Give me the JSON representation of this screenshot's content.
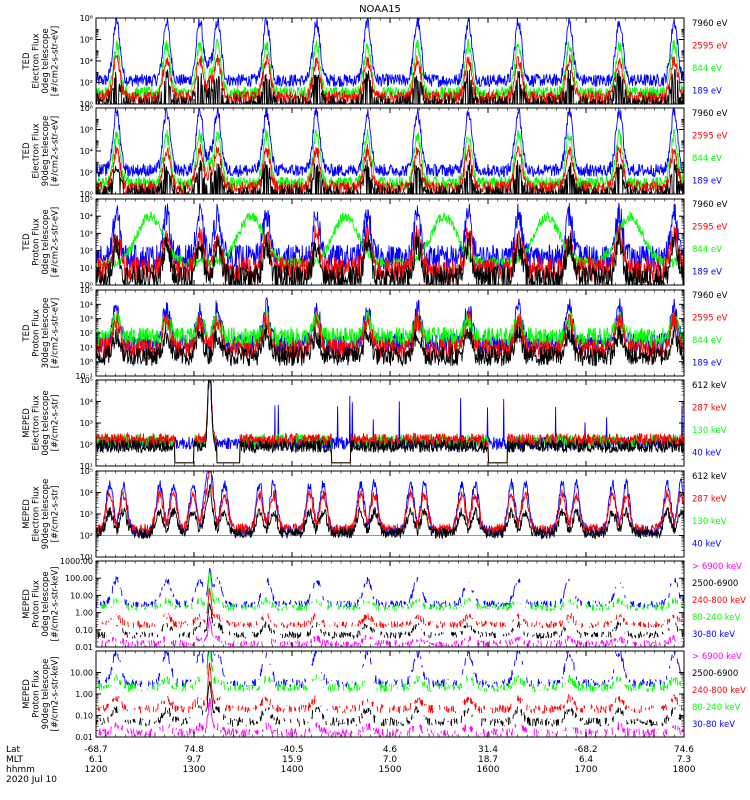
{
  "title": "NOAA15",
  "date_label": "2020 Jul 10",
  "orbit_axis": {
    "row_labels": [
      "Lat",
      "MLT",
      "hhmm"
    ],
    "columns": [
      {
        "lat": "-68.7",
        "mlt": "6.1",
        "hhmm": "1200"
      },
      {
        "lat": "74.8",
        "mlt": "9.7",
        "hhmm": "1300"
      },
      {
        "lat": "-40.5",
        "mlt": "15.9",
        "hhmm": "1400"
      },
      {
        "lat": "4.6",
        "mlt": "7.0",
        "hhmm": "1500"
      },
      {
        "lat": "31.4",
        "mlt": "18.7",
        "hhmm": "1600"
      },
      {
        "lat": "-68.2",
        "mlt": "6.4",
        "hhmm": "1700"
      },
      {
        "lat": "74.6",
        "mlt": "7.3",
        "hhmm": "1800"
      }
    ]
  },
  "colors": {
    "black": "#000000",
    "red": "#ff0000",
    "green": "#00ff00",
    "blue": "#0000ff",
    "magenta": "#ff00ff"
  },
  "chart_data": [
    {
      "type": "line",
      "ylabel": [
        "TED",
        "Electron Flux",
        "0deg telescope",
        "[#/cm2-s-str-eV]"
      ],
      "scale": "log",
      "ylim": [
        1,
        100000000
      ],
      "yticks": [
        1,
        100,
        10000,
        1000000,
        100000000
      ],
      "ytick_labels": [
        "10⁰",
        "10²",
        "10⁴",
        "10⁶",
        "10⁸"
      ],
      "xlim": [
        1200,
        1800
      ],
      "profile": "ted_e",
      "series": [
        {
          "name": "7960 eV",
          "color": "black"
        },
        {
          "name": "2595 eV",
          "color": "red"
        },
        {
          "name": "844 eV",
          "color": "green"
        },
        {
          "name": "189 eV",
          "color": "blue"
        }
      ]
    },
    {
      "type": "line",
      "ylabel": [
        "TED",
        "Electron Flux",
        "90deg telescope",
        "[#/cm2-s-str-eV]"
      ],
      "scale": "log",
      "ylim": [
        1,
        100000000
      ],
      "yticks": [
        1,
        100,
        10000,
        1000000,
        100000000
      ],
      "ytick_labels": [
        "10⁰",
        "10²",
        "10⁴",
        "10⁶",
        "10⁸"
      ],
      "xlim": [
        1200,
        1800
      ],
      "profile": "ted_e",
      "series": [
        {
          "name": "7960 eV",
          "color": "black"
        },
        {
          "name": "2595 eV",
          "color": "red"
        },
        {
          "name": "844 eV",
          "color": "green"
        },
        {
          "name": "189 eV",
          "color": "blue"
        }
      ]
    },
    {
      "type": "line",
      "ylabel": [
        "TED",
        "Proton Flux",
        "0deg telescope",
        "[#/cm2-s-str-eV]"
      ],
      "scale": "log",
      "ylim": [
        1,
        100000
      ],
      "yticks": [
        1,
        10,
        100,
        1000,
        10000,
        100000
      ],
      "ytick_labels": [
        "10⁰",
        "10¹",
        "10²",
        "10³",
        "10⁴",
        "10⁵"
      ],
      "xlim": [
        1200,
        1800
      ],
      "profile": "ted_p",
      "series": [
        {
          "name": "7960 eV",
          "color": "black"
        },
        {
          "name": "2595 eV",
          "color": "red"
        },
        {
          "name": "844 eV",
          "color": "green"
        },
        {
          "name": "189 eV",
          "color": "blue"
        }
      ]
    },
    {
      "type": "line",
      "ylabel": [
        "TED",
        "Proton Flux",
        "30deg telescope",
        "[#/cm2-s-str-eV]"
      ],
      "scale": "log",
      "ylim": [
        0.1,
        100000
      ],
      "yticks": [
        0.1,
        1,
        10,
        100,
        1000,
        10000,
        100000
      ],
      "ytick_labels": [
        "10⁻¹",
        "10⁰",
        "10¹",
        "10²",
        "10³",
        "10⁴",
        "10⁵"
      ],
      "xlim": [
        1200,
        1800
      ],
      "profile": "ted_p30",
      "series": [
        {
          "name": "7960 eV",
          "color": "black"
        },
        {
          "name": "2595 eV",
          "color": "red"
        },
        {
          "name": "844 eV",
          "color": "green"
        },
        {
          "name": "189 eV",
          "color": "blue"
        }
      ]
    },
    {
      "type": "line",
      "ylabel": [
        "MEPED",
        "Electron Flux",
        "0deg telescope",
        "[#/cm2-s-str]"
      ],
      "scale": "log",
      "ylim": [
        10,
        100000
      ],
      "yticks": [
        10,
        100,
        1000,
        10000,
        100000
      ],
      "ytick_labels": [
        "10¹",
        "10²",
        "10³",
        "10⁴",
        "10⁵"
      ],
      "xlim": [
        1200,
        1800
      ],
      "profile": "mep_e0",
      "series": [
        {
          "name": "612 keV",
          "color": "black"
        },
        {
          "name": "287 keV",
          "color": "red"
        },
        {
          "name": "130 keV",
          "color": "green"
        },
        {
          "name": "40 keV",
          "color": "blue"
        }
      ]
    },
    {
      "type": "line",
      "ylabel": [
        "MEPED",
        "Electron Flux",
        "90deg telescope",
        "[#/cm2-s-str]"
      ],
      "scale": "log",
      "ylim": [
        10,
        100000
      ],
      "yticks": [
        10,
        100,
        1000,
        10000,
        100000
      ],
      "ytick_labels": [
        "10¹",
        "10²",
        "10³",
        "10⁴",
        "10⁵"
      ],
      "xlim": [
        1200,
        1800
      ],
      "profile": "mep_e90",
      "series": [
        {
          "name": "612 keV",
          "color": "black"
        },
        {
          "name": "287 keV",
          "color": "red"
        },
        {
          "name": "130 keV",
          "color": "green"
        },
        {
          "name": "40 keV",
          "color": "blue"
        }
      ]
    },
    {
      "type": "line",
      "ylabel": [
        "MEPED",
        "Proton Flux",
        "0deg telescope",
        "[#/cm2-s-str-keV]"
      ],
      "scale": "log",
      "ylim": [
        0.01,
        1000
      ],
      "yticks": [
        0.01,
        0.1,
        1,
        10,
        100,
        1000
      ],
      "ytick_labels": [
        "0.01",
        "0.10",
        "1.00",
        "10.00",
        "100.00",
        "1000.00"
      ],
      "xlim": [
        1200,
        1800
      ],
      "profile": "mep_p",
      "series": [
        {
          "name": "> 6900 keV",
          "color": "magenta"
        },
        {
          "name": "2500-6900",
          "color": "black"
        },
        {
          "name": "240-800 keV",
          "color": "red"
        },
        {
          "name": "80-240 keV",
          "color": "green"
        },
        {
          "name": "30-80 keV",
          "color": "blue"
        }
      ]
    },
    {
      "type": "line",
      "ylabel": [
        "MEPED",
        "Proton Flux",
        "90deg telescope",
        "[#/cm2-s-str-keV]"
      ],
      "scale": "log",
      "ylim": [
        0.01,
        100
      ],
      "yticks": [
        0.01,
        0.1,
        1,
        10
      ],
      "ytick_labels": [
        "0.01",
        "0.10",
        "1.00",
        "10.00"
      ],
      "xlim": [
        1200,
        1800
      ],
      "profile": "mep_p",
      "series": [
        {
          "name": "> 6900 keV",
          "color": "magenta"
        },
        {
          "name": "2500-6900",
          "color": "black"
        },
        {
          "name": "240-800 keV",
          "color": "red"
        },
        {
          "name": "80-240 keV",
          "color": "green"
        },
        {
          "name": "30-80 keV",
          "color": "blue"
        }
      ]
    }
  ]
}
